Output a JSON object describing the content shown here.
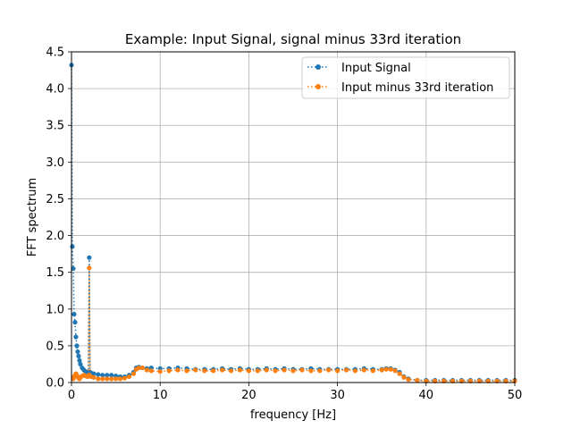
{
  "chart_data": {
    "type": "line",
    "title": "Example: Input Signal, signal minus 33rd iteration",
    "xlabel": "frequency [Hz]",
    "ylabel": "FFT spectrum",
    "xlim": [
      0,
      50
    ],
    "ylim": [
      0,
      4.5
    ],
    "xticks": [
      0,
      10,
      20,
      30,
      40,
      50
    ],
    "yticks": [
      0.0,
      0.5,
      1.0,
      1.5,
      2.0,
      2.5,
      3.0,
      3.5,
      4.0,
      4.5
    ],
    "grid": true,
    "legend_position": "top-right",
    "series": [
      {
        "name": "Input Signal",
        "color": "#1f77b4",
        "line_style": "dotted",
        "marker": "circle",
        "x": [
          0,
          0.1,
          0.2,
          0.3,
          0.4,
          0.5,
          0.6,
          0.7,
          0.8,
          0.9,
          1.0,
          1.2,
          1.4,
          1.6,
          1.8,
          1.9,
          2.0,
          2.1,
          2.2,
          2.5,
          3.0,
          3.5,
          4.0,
          4.5,
          5.0,
          5.5,
          6.0,
          6.5,
          7.0,
          7.3,
          7.6,
          8.0,
          8.5,
          9.0,
          10,
          11,
          12,
          13,
          14,
          15,
          16,
          17,
          18,
          19,
          20,
          21,
          22,
          23,
          24,
          25,
          26,
          27,
          28,
          29,
          30,
          31,
          32,
          33,
          34,
          35,
          35.5,
          36,
          36.5,
          37,
          37.5,
          38,
          39,
          40,
          41,
          42,
          43,
          44,
          45,
          46,
          47,
          48,
          49,
          50
        ],
        "y": [
          4.32,
          1.85,
          1.55,
          0.93,
          0.82,
          0.62,
          0.5,
          0.42,
          0.36,
          0.3,
          0.25,
          0.2,
          0.17,
          0.15,
          0.14,
          0.14,
          1.7,
          0.14,
          0.13,
          0.12,
          0.11,
          0.1,
          0.1,
          0.1,
          0.09,
          0.08,
          0.08,
          0.1,
          0.14,
          0.2,
          0.21,
          0.2,
          0.19,
          0.2,
          0.19,
          0.19,
          0.2,
          0.19,
          0.18,
          0.18,
          0.18,
          0.19,
          0.18,
          0.19,
          0.18,
          0.18,
          0.19,
          0.18,
          0.19,
          0.18,
          0.18,
          0.19,
          0.18,
          0.18,
          0.18,
          0.18,
          0.18,
          0.19,
          0.18,
          0.18,
          0.19,
          0.19,
          0.17,
          0.14,
          0.08,
          0.05,
          0.03,
          0.03,
          0.03,
          0.03,
          0.03,
          0.03,
          0.03,
          0.03,
          0.03,
          0.03,
          0.03,
          0.03
        ]
      },
      {
        "name": "Input minus 33rd iteration",
        "color": "#ff7f0e",
        "line_style": "dotted",
        "marker": "circle",
        "x": [
          0.2,
          0.3,
          0.4,
          0.5,
          0.6,
          0.7,
          0.8,
          0.9,
          1.0,
          1.2,
          1.4,
          1.6,
          1.8,
          1.9,
          2.0,
          2.1,
          2.2,
          2.5,
          3.0,
          3.5,
          4.0,
          4.5,
          5.0,
          5.5,
          6.0,
          6.5,
          7.0,
          7.3,
          7.6,
          8.0,
          8.5,
          9.0,
          10,
          11,
          12,
          13,
          14,
          15,
          16,
          17,
          18,
          19,
          20,
          21,
          22,
          23,
          24,
          25,
          26,
          27,
          28,
          29,
          30,
          31,
          32,
          33,
          34,
          35,
          35.5,
          36,
          36.5,
          37,
          37.5,
          38,
          39,
          40,
          41,
          42,
          43,
          44,
          45,
          46,
          47,
          48,
          49,
          50
        ],
        "y": [
          0.05,
          0.08,
          0.1,
          0.12,
          0.1,
          0.08,
          0.06,
          0.05,
          0.07,
          0.09,
          0.1,
          0.09,
          0.08,
          0.09,
          1.56,
          0.09,
          0.08,
          0.07,
          0.05,
          0.05,
          0.05,
          0.05,
          0.05,
          0.05,
          0.06,
          0.08,
          0.12,
          0.18,
          0.2,
          0.2,
          0.17,
          0.16,
          0.15,
          0.16,
          0.17,
          0.16,
          0.17,
          0.16,
          0.16,
          0.17,
          0.16,
          0.17,
          0.16,
          0.16,
          0.17,
          0.16,
          0.17,
          0.16,
          0.17,
          0.16,
          0.16,
          0.17,
          0.16,
          0.17,
          0.16,
          0.17,
          0.16,
          0.17,
          0.18,
          0.18,
          0.16,
          0.12,
          0.07,
          0.04,
          0.03,
          0.02,
          0.02,
          0.02,
          0.02,
          0.02,
          0.02,
          0.02,
          0.02,
          0.02,
          0.02,
          0.02
        ]
      }
    ]
  }
}
